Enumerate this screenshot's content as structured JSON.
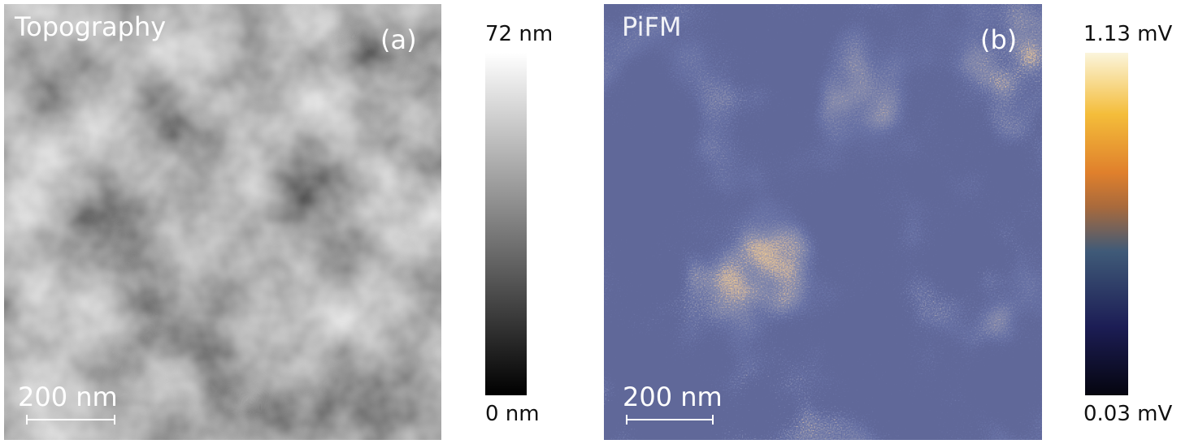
{
  "panels": [
    {
      "label": "Topography",
      "letter": "(a)",
      "scale_bar": "200 nm",
      "colorbar": {
        "max": "72 nm",
        "min": "0 nm"
      }
    },
    {
      "label": "PiFM",
      "letter": "(b)",
      "scale_bar": "200 nm",
      "colorbar": {
        "max": "1.13 mV",
        "min": "0.03 mV"
      }
    }
  ]
}
